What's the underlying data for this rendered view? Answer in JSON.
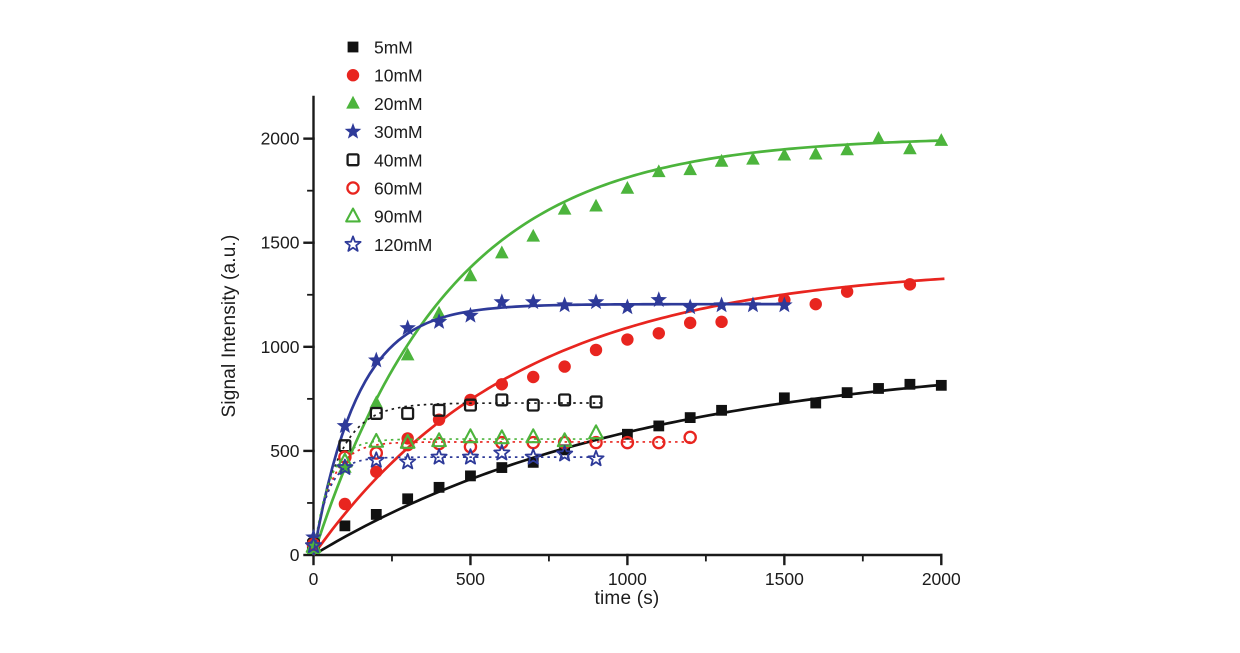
{
  "chart_data": {
    "type": "scatter",
    "title": "",
    "xlabel": "time (s)",
    "ylabel": "Signal Intensity (a.u.)",
    "xlim": [
      0,
      2000
    ],
    "ylim": [
      0,
      2200
    ],
    "x_major_ticks": [
      0,
      500,
      1000,
      1500,
      2000
    ],
    "x_minor_ticks": [
      250,
      750,
      1250,
      1750
    ],
    "y_major_ticks": [
      0,
      500,
      1000,
      1500,
      2000
    ],
    "y_minor_ticks": [
      250,
      750,
      1250,
      1750
    ],
    "grid": false,
    "legend_position": "upper-left-inside",
    "axis_color": "#1a1a1a",
    "series": [
      {
        "name": "5mM",
        "label": "5mM",
        "marker": "square",
        "fill": "filled",
        "color": "#111111",
        "line": "solid",
        "fit": {
          "A": 960,
          "tau": 1050,
          "t_end": 2000
        },
        "points": [
          [
            0,
            55
          ],
          [
            100,
            140
          ],
          [
            200,
            195
          ],
          [
            300,
            270
          ],
          [
            400,
            325
          ],
          [
            500,
            380
          ],
          [
            600,
            420
          ],
          [
            700,
            445
          ],
          [
            800,
            505
          ],
          [
            1000,
            580
          ],
          [
            1100,
            620
          ],
          [
            1200,
            660
          ],
          [
            1300,
            695
          ],
          [
            1500,
            755
          ],
          [
            1600,
            730
          ],
          [
            1700,
            780
          ],
          [
            1800,
            800
          ],
          [
            1900,
            820
          ],
          [
            2000,
            815
          ]
        ]
      },
      {
        "name": "10mM",
        "label": " 10mM",
        "marker": "circle",
        "fill": "filled",
        "color": "#e8251f",
        "line": "solid",
        "fit": {
          "A": 1390,
          "tau": 650,
          "t_end": 2020
        },
        "points": [
          [
            0,
            60
          ],
          [
            100,
            245
          ],
          [
            200,
            400
          ],
          [
            300,
            560
          ],
          [
            400,
            650
          ],
          [
            500,
            745
          ],
          [
            600,
            820
          ],
          [
            700,
            855
          ],
          [
            800,
            905
          ],
          [
            900,
            985
          ],
          [
            1000,
            1035
          ],
          [
            1100,
            1065
          ],
          [
            1200,
            1115
          ],
          [
            1300,
            1120
          ],
          [
            1500,
            1225
          ],
          [
            1600,
            1205
          ],
          [
            1700,
            1265
          ],
          [
            1900,
            1300
          ]
        ]
      },
      {
        "name": "20mM",
        "label": "20mM",
        "marker": "triangle",
        "fill": "filled",
        "color": "#4cb43c",
        "line": "solid",
        "fit": {
          "A": 2010,
          "tau": 430,
          "t_end": 2015
        },
        "points": [
          [
            0,
            30
          ],
          [
            100,
            420
          ],
          [
            200,
            730
          ],
          [
            300,
            960
          ],
          [
            400,
            1160
          ],
          [
            500,
            1340
          ],
          [
            600,
            1450
          ],
          [
            700,
            1530
          ],
          [
            800,
            1660
          ],
          [
            900,
            1675
          ],
          [
            1000,
            1760
          ],
          [
            1100,
            1840
          ],
          [
            1200,
            1850
          ],
          [
            1300,
            1890
          ],
          [
            1400,
            1900
          ],
          [
            1500,
            1920
          ],
          [
            1600,
            1925
          ],
          [
            1700,
            1945
          ],
          [
            1800,
            2000
          ],
          [
            1900,
            1950
          ],
          [
            2000,
            1990
          ]
        ]
      },
      {
        "name": "30mM",
        "label": "30mM",
        "marker": "star",
        "fill": "filled",
        "color": "#2e3a99",
        "line": "solid",
        "fit": {
          "A": 1205,
          "tau": 140,
          "t_end": 1515
        },
        "points": [
          [
            0,
            85
          ],
          [
            100,
            620
          ],
          [
            200,
            935
          ],
          [
            300,
            1090
          ],
          [
            400,
            1120
          ],
          [
            500,
            1150
          ],
          [
            600,
            1215
          ],
          [
            700,
            1215
          ],
          [
            800,
            1200
          ],
          [
            900,
            1215
          ],
          [
            1000,
            1190
          ],
          [
            1100,
            1225
          ],
          [
            1200,
            1190
          ],
          [
            1300,
            1200
          ],
          [
            1400,
            1200
          ],
          [
            1500,
            1200
          ]
        ]
      },
      {
        "name": "40mM",
        "label": "40mM",
        "marker": "square",
        "fill": "open",
        "color": "#1a1a1a",
        "line": "dotted",
        "fit": {
          "A": 730,
          "tau": 78,
          "t_end": 915
        },
        "points": [
          [
            0,
            50
          ],
          [
            100,
            525
          ],
          [
            200,
            680
          ],
          [
            300,
            680
          ],
          [
            400,
            695
          ],
          [
            500,
            720
          ],
          [
            600,
            745
          ],
          [
            700,
            720
          ],
          [
            800,
            745
          ],
          [
            900,
            735
          ]
        ]
      },
      {
        "name": "60mM",
        "label": "60mM",
        "marker": "circle",
        "fill": "open",
        "color": "#e8251f",
        "line": "dotted",
        "fit": {
          "A": 543,
          "tau": 55,
          "t_end": 1215
        },
        "points": [
          [
            0,
            50
          ],
          [
            100,
            470
          ],
          [
            200,
            490
          ],
          [
            300,
            530
          ],
          [
            400,
            535
          ],
          [
            500,
            520
          ],
          [
            600,
            540
          ],
          [
            700,
            540
          ],
          [
            800,
            540
          ],
          [
            900,
            540
          ],
          [
            1000,
            540
          ],
          [
            1100,
            540
          ],
          [
            1200,
            565
          ]
        ]
      },
      {
        "name": "90mM",
        "label": "90mM",
        "marker": "triangle",
        "fill": "open",
        "color": "#4cb43c",
        "line": "dotted",
        "fit": {
          "A": 557,
          "tau": 50,
          "t_end": 915
        },
        "points": [
          [
            0,
            40
          ],
          [
            100,
            450
          ],
          [
            200,
            545
          ],
          [
            300,
            540
          ],
          [
            400,
            548
          ],
          [
            500,
            567
          ],
          [
            600,
            562
          ],
          [
            700,
            567
          ],
          [
            800,
            548
          ],
          [
            900,
            586
          ]
        ]
      },
      {
        "name": "120mM",
        "label": "120mM",
        "marker": "star",
        "fill": "open",
        "color": "#2e3a99",
        "line": "dotted",
        "fit": {
          "A": 470,
          "tau": 45,
          "t_end": 905
        },
        "points": [
          [
            0,
            45
          ],
          [
            100,
            420
          ],
          [
            200,
            455
          ],
          [
            300,
            447
          ],
          [
            400,
            470
          ],
          [
            500,
            470
          ],
          [
            600,
            490
          ],
          [
            700,
            470
          ],
          [
            800,
            485
          ],
          [
            900,
            462
          ]
        ]
      }
    ]
  }
}
